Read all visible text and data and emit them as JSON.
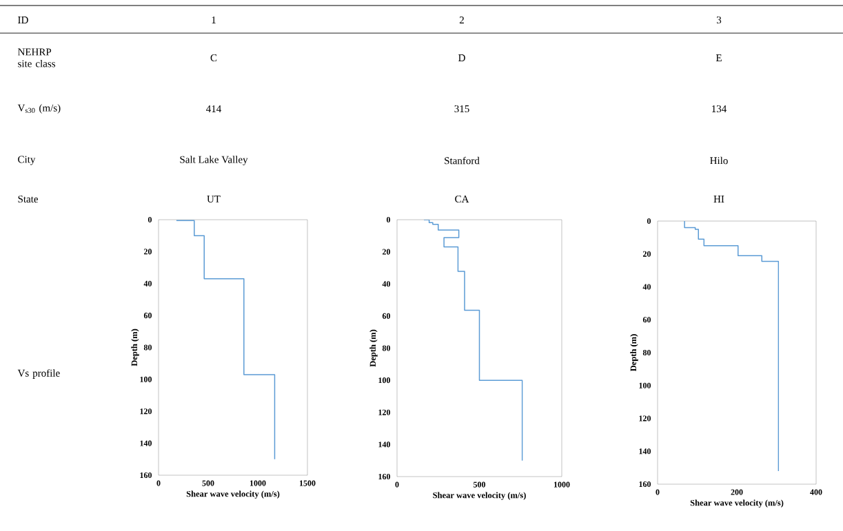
{
  "chart_data": [
    {
      "type": "other",
      "annotations": [
        "ID",
        "NEHRP site class",
        "V$_{s30}$ (m/s)",
        "City",
        "State",
        "Vs profile"
      ]
    },
    {
      "type": "line",
      "annotations": [
        "1",
        "C",
        "414",
        "Salt Lake Valley",
        "UT"
      ],
      "xlabel": "Shear wave velocity (m/s)",
      "ylabel": "Depth (m)",
      "color": "#5b9bd5",
      "x": [
        180,
        360,
        360,
        460,
        460,
        860,
        860,
        1170,
        1170
      ],
      "values": [
        0.5,
        0.5,
        10,
        10,
        37,
        37,
        97,
        97,
        150
      ],
      "xlim": [
        0,
        1500
      ],
      "xticks": [
        0,
        500,
        1000,
        1500
      ],
      "ylim": [
        160,
        0
      ],
      "yticks": [
        0,
        20,
        40,
        60,
        80,
        100,
        120,
        140,
        160
      ]
    },
    {
      "type": "line",
      "annotations": [
        "2",
        "D",
        "315",
        "Stanford",
        "CA"
      ],
      "xlabel": "Shear wave velocity (m/s)",
      "ylabel": "Depth (m)",
      "color": "#5b9bd5",
      "x": [
        163,
        195,
        195,
        217,
        217,
        250,
        250,
        375,
        375,
        285,
        285,
        370,
        370,
        410,
        410,
        500,
        500,
        760,
        760
      ],
      "values": [
        0,
        0,
        1.8,
        1.8,
        2.9,
        2.9,
        6.4,
        6.4,
        11.2,
        11.2,
        16.9,
        16.9,
        32.2,
        32.2,
        56.4,
        56.4,
        100,
        100,
        150
      ],
      "xlim": [
        0,
        1000
      ],
      "xticks": [
        0,
        500,
        1000
      ],
      "ylim": [
        160,
        0
      ],
      "yticks": [
        0,
        20,
        40,
        60,
        80,
        100,
        120,
        140,
        160
      ]
    },
    {
      "type": "line",
      "annotations": [
        "3",
        "E",
        "134",
        "Hilo",
        "HI"
      ],
      "xlabel": "Shear wave velocity (m/s)",
      "ylabel": "Depth (m)",
      "color": "#5b9bd5",
      "x": [
        68,
        68,
        95,
        95,
        103,
        103,
        117,
        117,
        203,
        203,
        263,
        263,
        305,
        305
      ],
      "values": [
        0,
        4,
        4,
        5,
        5,
        11,
        11,
        15,
        15,
        21,
        21,
        24.5,
        24.5,
        152
      ],
      "xlim": [
        0,
        400
      ],
      "xticks": [
        0,
        200,
        400
      ],
      "ylim": [
        160,
        0
      ],
      "yticks": [
        0,
        20,
        40,
        60,
        80,
        100,
        120,
        140,
        160
      ]
    }
  ]
}
